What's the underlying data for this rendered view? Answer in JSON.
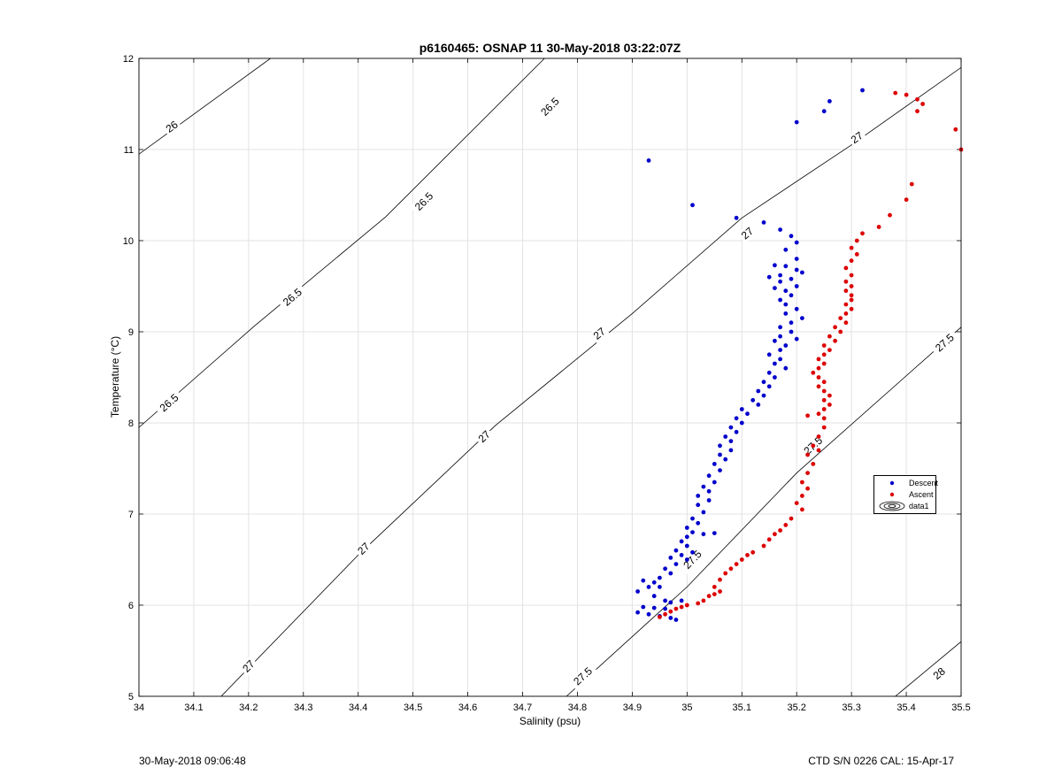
{
  "chart_data": {
    "type": "scatter",
    "title": "p6160465: OSNAP 11 30-May-2018 03:22:07Z",
    "xlabel": "Salinity (psu)",
    "ylabel": "Temperature (°C)",
    "xlim": [
      34,
      35.5
    ],
    "ylim": [
      5,
      12
    ],
    "x_ticks": [
      "34",
      "34.1",
      "34.2",
      "34.3",
      "34.4",
      "34.5",
      "34.6",
      "34.7",
      "34.8",
      "34.9",
      "35",
      "35.1",
      "35.2",
      "35.3",
      "35.4",
      "35.5"
    ],
    "y_ticks": [
      "5",
      "6",
      "7",
      "8",
      "9",
      "10",
      "11",
      "12"
    ],
    "grid": true,
    "legend_position": "right",
    "legend": [
      "Descent",
      "Ascent",
      "data1"
    ],
    "contours": [
      {
        "level": "26",
        "points": [
          [
            34.0,
            10.95
          ],
          [
            34.24,
            12.0
          ]
        ]
      },
      {
        "level": "26.5",
        "points": [
          [
            34.0,
            7.95
          ],
          [
            34.21,
            9.06
          ],
          [
            34.45,
            10.26
          ],
          [
            34.74,
            12.0
          ]
        ]
      },
      {
        "level": "27",
        "points": [
          [
            34.15,
            5.0
          ],
          [
            34.4,
            6.55
          ],
          [
            34.65,
            7.97
          ],
          [
            34.9,
            9.2
          ],
          [
            35.1,
            10.25
          ],
          [
            35.3,
            11.05
          ],
          [
            35.5,
            11.9
          ]
        ]
      },
      {
        "level": "27.5",
        "points": [
          [
            34.78,
            5.0
          ],
          [
            35.0,
            6.2
          ],
          [
            35.2,
            7.45
          ],
          [
            35.5,
            9.05
          ]
        ]
      },
      {
        "level": "28",
        "points": [
          [
            35.38,
            5.0
          ],
          [
            35.5,
            5.6
          ]
        ]
      }
    ],
    "contour_labels": [
      {
        "text": "26",
        "x": 34.06,
        "y": 11.25
      },
      {
        "text": "26.5",
        "x": 34.055,
        "y": 8.22
      },
      {
        "text": "26.5",
        "x": 34.28,
        "y": 9.38
      },
      {
        "text": "26.5",
        "x": 34.52,
        "y": 10.43
      },
      {
        "text": "26.5",
        "x": 34.75,
        "y": 11.47
      },
      {
        "text": "27",
        "x": 34.2,
        "y": 5.33
      },
      {
        "text": "27",
        "x": 34.41,
        "y": 6.62
      },
      {
        "text": "27",
        "x": 34.63,
        "y": 7.85
      },
      {
        "text": "27",
        "x": 34.84,
        "y": 8.98
      },
      {
        "text": "27",
        "x": 35.11,
        "y": 10.08
      },
      {
        "text": "27",
        "x": 35.31,
        "y": 11.13
      },
      {
        "text": "27.5",
        "x": 34.81,
        "y": 5.22
      },
      {
        "text": "27.5",
        "x": 35.01,
        "y": 6.5
      },
      {
        "text": "27.5",
        "x": 35.23,
        "y": 7.75
      },
      {
        "text": "27.5",
        "x": 35.47,
        "y": 8.88
      },
      {
        "text": "28",
        "x": 35.46,
        "y": 5.25
      }
    ],
    "series": [
      {
        "name": "Descent",
        "color": "#0000cc",
        "points": [
          [
            34.93,
            10.88
          ],
          [
            35.01,
            10.39
          ],
          [
            35.09,
            10.25
          ],
          [
            35.14,
            10.2
          ],
          [
            35.2,
            11.3
          ],
          [
            35.25,
            11.42
          ],
          [
            35.26,
            11.53
          ],
          [
            35.32,
            11.65
          ],
          [
            35.17,
            10.12
          ],
          [
            35.19,
            10.05
          ],
          [
            35.2,
            9.98
          ],
          [
            35.18,
            9.9
          ],
          [
            35.2,
            9.8
          ],
          [
            35.16,
            9.73
          ],
          [
            35.18,
            9.72
          ],
          [
            35.2,
            9.68
          ],
          [
            35.21,
            9.65
          ],
          [
            35.17,
            9.62
          ],
          [
            35.19,
            9.58
          ],
          [
            35.15,
            9.6
          ],
          [
            35.17,
            9.55
          ],
          [
            35.2,
            9.5
          ],
          [
            35.16,
            9.48
          ],
          [
            35.18,
            9.45
          ],
          [
            35.19,
            9.4
          ],
          [
            35.17,
            9.35
          ],
          [
            35.18,
            9.3
          ],
          [
            35.2,
            9.25
          ],
          [
            35.18,
            9.2
          ],
          [
            35.21,
            9.15
          ],
          [
            35.19,
            9.1
          ],
          [
            35.17,
            9.05
          ],
          [
            35.19,
            9.0
          ],
          [
            35.17,
            8.95
          ],
          [
            35.2,
            8.92
          ],
          [
            35.16,
            8.9
          ],
          [
            35.18,
            8.85
          ],
          [
            35.17,
            8.8
          ],
          [
            35.15,
            8.75
          ],
          [
            35.17,
            8.7
          ],
          [
            35.16,
            8.65
          ],
          [
            35.18,
            8.6
          ],
          [
            35.15,
            8.55
          ],
          [
            35.16,
            8.5
          ],
          [
            35.14,
            8.45
          ],
          [
            35.15,
            8.4
          ],
          [
            35.13,
            8.35
          ],
          [
            35.14,
            8.3
          ],
          [
            35.12,
            8.25
          ],
          [
            35.13,
            8.2
          ],
          [
            35.1,
            8.15
          ],
          [
            35.11,
            8.1
          ],
          [
            35.09,
            8.05
          ],
          [
            35.1,
            8.0
          ],
          [
            35.08,
            7.95
          ],
          [
            35.09,
            7.9
          ],
          [
            35.07,
            7.85
          ],
          [
            35.08,
            7.8
          ],
          [
            35.06,
            7.75
          ],
          [
            35.08,
            7.7
          ],
          [
            35.06,
            7.65
          ],
          [
            35.07,
            7.6
          ],
          [
            35.05,
            7.55
          ],
          [
            35.06,
            7.48
          ],
          [
            35.04,
            7.42
          ],
          [
            35.05,
            7.35
          ],
          [
            35.03,
            7.3
          ],
          [
            35.04,
            7.25
          ],
          [
            35.02,
            7.2
          ],
          [
            35.04,
            7.15
          ],
          [
            35.02,
            7.1
          ],
          [
            35.03,
            7.02
          ],
          [
            35.01,
            6.95
          ],
          [
            35.02,
            6.9
          ],
          [
            35.0,
            6.85
          ],
          [
            35.01,
            6.8
          ],
          [
            35.03,
            6.78
          ],
          [
            35.05,
            6.79
          ],
          [
            35.0,
            6.75
          ],
          [
            34.99,
            6.7
          ],
          [
            35.0,
            6.65
          ],
          [
            34.98,
            6.6
          ],
          [
            35.01,
            6.58
          ],
          [
            34.99,
            6.55
          ],
          [
            34.97,
            6.52
          ],
          [
            35.0,
            6.5
          ],
          [
            34.98,
            6.45
          ],
          [
            34.96,
            6.4
          ],
          [
            34.97,
            6.35
          ],
          [
            34.95,
            6.3
          ],
          [
            34.92,
            6.27
          ],
          [
            34.94,
            6.25
          ],
          [
            34.93,
            6.2
          ],
          [
            34.95,
            6.2
          ],
          [
            34.91,
            6.15
          ],
          [
            34.94,
            6.1
          ],
          [
            34.96,
            6.05
          ],
          [
            34.97,
            6.03
          ],
          [
            34.99,
            6.05
          ],
          [
            34.92,
            5.98
          ],
          [
            34.94,
            5.97
          ],
          [
            34.96,
            5.96
          ],
          [
            34.91,
            5.92
          ],
          [
            34.93,
            5.9
          ],
          [
            34.95,
            5.88
          ],
          [
            34.97,
            5.86
          ],
          [
            34.98,
            5.84
          ]
        ]
      },
      {
        "name": "Ascent",
        "color": "#dd0000",
        "points": [
          [
            35.38,
            11.62
          ],
          [
            35.4,
            11.6
          ],
          [
            35.42,
            11.55
          ],
          [
            35.43,
            11.5
          ],
          [
            35.42,
            11.42
          ],
          [
            35.49,
            11.22
          ],
          [
            35.5,
            11.0
          ],
          [
            35.41,
            10.62
          ],
          [
            35.4,
            10.45
          ],
          [
            35.37,
            10.28
          ],
          [
            35.35,
            10.15
          ],
          [
            35.32,
            10.08
          ],
          [
            35.31,
            10.0
          ],
          [
            35.3,
            9.92
          ],
          [
            35.31,
            9.85
          ],
          [
            35.3,
            9.78
          ],
          [
            35.29,
            9.7
          ],
          [
            35.3,
            9.62
          ],
          [
            35.29,
            9.55
          ],
          [
            35.3,
            9.5
          ],
          [
            35.29,
            9.45
          ],
          [
            35.3,
            9.4
          ],
          [
            35.3,
            9.35
          ],
          [
            35.29,
            9.3
          ],
          [
            35.3,
            9.25
          ],
          [
            35.29,
            9.2
          ],
          [
            35.28,
            9.15
          ],
          [
            35.29,
            9.1
          ],
          [
            35.27,
            9.05
          ],
          [
            35.28,
            9.0
          ],
          [
            35.26,
            8.95
          ],
          [
            35.27,
            8.9
          ],
          [
            35.25,
            8.85
          ],
          [
            35.26,
            8.8
          ],
          [
            35.25,
            8.75
          ],
          [
            35.24,
            8.7
          ],
          [
            35.25,
            8.65
          ],
          [
            35.24,
            8.6
          ],
          [
            35.23,
            8.55
          ],
          [
            35.24,
            8.5
          ],
          [
            35.25,
            8.45
          ],
          [
            35.24,
            8.4
          ],
          [
            35.25,
            8.35
          ],
          [
            35.26,
            8.3
          ],
          [
            35.25,
            8.25
          ],
          [
            35.26,
            8.2
          ],
          [
            35.25,
            8.15
          ],
          [
            35.24,
            8.1
          ],
          [
            35.22,
            8.08
          ],
          [
            35.25,
            8.05
          ],
          [
            35.25,
            7.95
          ],
          [
            35.24,
            7.85
          ],
          [
            35.23,
            7.75
          ],
          [
            35.24,
            7.7
          ],
          [
            35.22,
            7.65
          ],
          [
            35.23,
            7.55
          ],
          [
            35.22,
            7.45
          ],
          [
            35.21,
            7.35
          ],
          [
            35.22,
            7.28
          ],
          [
            35.21,
            7.2
          ],
          [
            35.2,
            7.12
          ],
          [
            35.21,
            7.05
          ],
          [
            35.19,
            6.95
          ],
          [
            35.18,
            6.88
          ],
          [
            35.17,
            6.82
          ],
          [
            35.16,
            6.78
          ],
          [
            35.15,
            6.72
          ],
          [
            35.14,
            6.65
          ],
          [
            35.12,
            6.58
          ],
          [
            35.11,
            6.55
          ],
          [
            35.1,
            6.5
          ],
          [
            35.09,
            6.45
          ],
          [
            35.08,
            6.4
          ],
          [
            35.07,
            6.35
          ],
          [
            35.06,
            6.28
          ],
          [
            35.05,
            6.2
          ],
          [
            35.06,
            6.15
          ],
          [
            35.04,
            6.1
          ],
          [
            35.03,
            6.05
          ],
          [
            35.02,
            6.02
          ],
          [
            35.0,
            6.0
          ],
          [
            34.99,
            5.98
          ],
          [
            34.98,
            5.96
          ],
          [
            34.97,
            5.93
          ],
          [
            34.96,
            5.9
          ],
          [
            34.95,
            5.87
          ],
          [
            35.05,
            6.12
          ]
        ]
      }
    ]
  },
  "footer": {
    "left": "30-May-2018 09:06:48",
    "right": "CTD S/N 0226  CAL: 15-Apr-17"
  }
}
